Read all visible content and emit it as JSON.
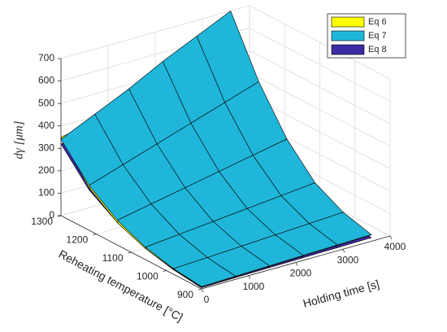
{
  "chart_data": {
    "type": "surface",
    "xlabel": "Holding time [s]",
    "ylabel": "Reheating temperature [°C]",
    "zlabel": "dγ [μm]",
    "x": [
      0,
      720,
      1440,
      2160,
      2880,
      3600
    ],
    "y": [
      900,
      980,
      1060,
      1140,
      1220,
      1300
    ],
    "xlim": [
      0,
      4000
    ],
    "xticks": [
      0,
      1000,
      2000,
      3000,
      4000
    ],
    "ylim": [
      900,
      1300
    ],
    "yticks": [
      900,
      1000,
      1100,
      1200,
      1300
    ],
    "zlim": [
      0,
      700
    ],
    "zticks": [
      0,
      100,
      200,
      300,
      400,
      500,
      600,
      700
    ],
    "grid": true,
    "legend": "northeast",
    "series": [
      {
        "name": "Eq 6",
        "color": "#ffff00",
        "values": [
          [
            8,
            12,
            16,
            20,
            24,
            28
          ],
          [
            22,
            28,
            35,
            42,
            50,
            58
          ],
          [
            50,
            62,
            75,
            88,
            100,
            112
          ],
          [
            100,
            122,
            145,
            168,
            190,
            212
          ],
          [
            190,
            220,
            250,
            280,
            310,
            340
          ],
          [
            350,
            375,
            400,
            425,
            450,
            475
          ]
        ]
      },
      {
        "name": "Eq 7",
        "color": "#1fb6d9",
        "values": [
          [
            10,
            14,
            18,
            22,
            26,
            30
          ],
          [
            25,
            32,
            40,
            48,
            56,
            64
          ],
          [
            55,
            70,
            85,
            100,
            115,
            130
          ],
          [
            110,
            140,
            170,
            200,
            230,
            260
          ],
          [
            200,
            250,
            300,
            350,
            400,
            450
          ],
          [
            340,
            410,
            480,
            560,
            630,
            700
          ]
        ]
      },
      {
        "name": "Eq 8",
        "color": "#3b2ca3",
        "values": [
          [
            5,
            8,
            10,
            12,
            14,
            16
          ],
          [
            20,
            25,
            30,
            34,
            38,
            42
          ],
          [
            50,
            58,
            66,
            74,
            82,
            90
          ],
          [
            100,
            112,
            124,
            136,
            148,
            160
          ],
          [
            180,
            196,
            212,
            228,
            244,
            260
          ],
          [
            320,
            332,
            344,
            356,
            368,
            380
          ]
        ]
      }
    ]
  }
}
